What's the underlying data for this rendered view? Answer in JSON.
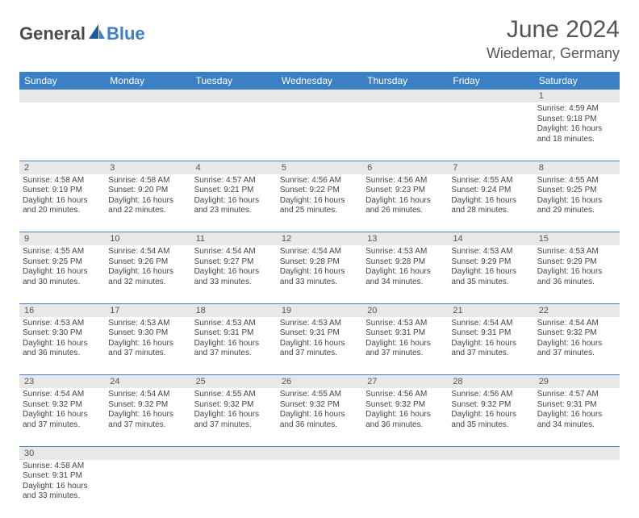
{
  "brand": {
    "part1": "General",
    "part2": "Blue"
  },
  "title": "June 2024",
  "location": "Wiedemar, Germany",
  "colors": {
    "header_bg": "#3b7fc4",
    "header_text": "#ffffff",
    "daynum_bg": "#e8e8e8",
    "text": "#444444",
    "title_color": "#555555",
    "border": "#3b7fc4"
  },
  "fonts": {
    "title_size": 30,
    "location_size": 18,
    "header_size": 12,
    "daynum_size": 11,
    "cell_size": 10
  },
  "days": [
    "Sunday",
    "Monday",
    "Tuesday",
    "Wednesday",
    "Thursday",
    "Friday",
    "Saturday"
  ],
  "weeks": [
    [
      null,
      null,
      null,
      null,
      null,
      null,
      {
        "n": "1",
        "sr": "Sunrise: 4:59 AM",
        "ss": "Sunset: 9:18 PM",
        "dl": "Daylight: 16 hours and 18 minutes."
      }
    ],
    [
      {
        "n": "2",
        "sr": "Sunrise: 4:58 AM",
        "ss": "Sunset: 9:19 PM",
        "dl": "Daylight: 16 hours and 20 minutes."
      },
      {
        "n": "3",
        "sr": "Sunrise: 4:58 AM",
        "ss": "Sunset: 9:20 PM",
        "dl": "Daylight: 16 hours and 22 minutes."
      },
      {
        "n": "4",
        "sr": "Sunrise: 4:57 AM",
        "ss": "Sunset: 9:21 PM",
        "dl": "Daylight: 16 hours and 23 minutes."
      },
      {
        "n": "5",
        "sr": "Sunrise: 4:56 AM",
        "ss": "Sunset: 9:22 PM",
        "dl": "Daylight: 16 hours and 25 minutes."
      },
      {
        "n": "6",
        "sr": "Sunrise: 4:56 AM",
        "ss": "Sunset: 9:23 PM",
        "dl": "Daylight: 16 hours and 26 minutes."
      },
      {
        "n": "7",
        "sr": "Sunrise: 4:55 AM",
        "ss": "Sunset: 9:24 PM",
        "dl": "Daylight: 16 hours and 28 minutes."
      },
      {
        "n": "8",
        "sr": "Sunrise: 4:55 AM",
        "ss": "Sunset: 9:25 PM",
        "dl": "Daylight: 16 hours and 29 minutes."
      }
    ],
    [
      {
        "n": "9",
        "sr": "Sunrise: 4:55 AM",
        "ss": "Sunset: 9:25 PM",
        "dl": "Daylight: 16 hours and 30 minutes."
      },
      {
        "n": "10",
        "sr": "Sunrise: 4:54 AM",
        "ss": "Sunset: 9:26 PM",
        "dl": "Daylight: 16 hours and 32 minutes."
      },
      {
        "n": "11",
        "sr": "Sunrise: 4:54 AM",
        "ss": "Sunset: 9:27 PM",
        "dl": "Daylight: 16 hours and 33 minutes."
      },
      {
        "n": "12",
        "sr": "Sunrise: 4:54 AM",
        "ss": "Sunset: 9:28 PM",
        "dl": "Daylight: 16 hours and 33 minutes."
      },
      {
        "n": "13",
        "sr": "Sunrise: 4:53 AM",
        "ss": "Sunset: 9:28 PM",
        "dl": "Daylight: 16 hours and 34 minutes."
      },
      {
        "n": "14",
        "sr": "Sunrise: 4:53 AM",
        "ss": "Sunset: 9:29 PM",
        "dl": "Daylight: 16 hours and 35 minutes."
      },
      {
        "n": "15",
        "sr": "Sunrise: 4:53 AM",
        "ss": "Sunset: 9:29 PM",
        "dl": "Daylight: 16 hours and 36 minutes."
      }
    ],
    [
      {
        "n": "16",
        "sr": "Sunrise: 4:53 AM",
        "ss": "Sunset: 9:30 PM",
        "dl": "Daylight: 16 hours and 36 minutes."
      },
      {
        "n": "17",
        "sr": "Sunrise: 4:53 AM",
        "ss": "Sunset: 9:30 PM",
        "dl": "Daylight: 16 hours and 37 minutes."
      },
      {
        "n": "18",
        "sr": "Sunrise: 4:53 AM",
        "ss": "Sunset: 9:31 PM",
        "dl": "Daylight: 16 hours and 37 minutes."
      },
      {
        "n": "19",
        "sr": "Sunrise: 4:53 AM",
        "ss": "Sunset: 9:31 PM",
        "dl": "Daylight: 16 hours and 37 minutes."
      },
      {
        "n": "20",
        "sr": "Sunrise: 4:53 AM",
        "ss": "Sunset: 9:31 PM",
        "dl": "Daylight: 16 hours and 37 minutes."
      },
      {
        "n": "21",
        "sr": "Sunrise: 4:54 AM",
        "ss": "Sunset: 9:31 PM",
        "dl": "Daylight: 16 hours and 37 minutes."
      },
      {
        "n": "22",
        "sr": "Sunrise: 4:54 AM",
        "ss": "Sunset: 9:32 PM",
        "dl": "Daylight: 16 hours and 37 minutes."
      }
    ],
    [
      {
        "n": "23",
        "sr": "Sunrise: 4:54 AM",
        "ss": "Sunset: 9:32 PM",
        "dl": "Daylight: 16 hours and 37 minutes."
      },
      {
        "n": "24",
        "sr": "Sunrise: 4:54 AM",
        "ss": "Sunset: 9:32 PM",
        "dl": "Daylight: 16 hours and 37 minutes."
      },
      {
        "n": "25",
        "sr": "Sunrise: 4:55 AM",
        "ss": "Sunset: 9:32 PM",
        "dl": "Daylight: 16 hours and 37 minutes."
      },
      {
        "n": "26",
        "sr": "Sunrise: 4:55 AM",
        "ss": "Sunset: 9:32 PM",
        "dl": "Daylight: 16 hours and 36 minutes."
      },
      {
        "n": "27",
        "sr": "Sunrise: 4:56 AM",
        "ss": "Sunset: 9:32 PM",
        "dl": "Daylight: 16 hours and 36 minutes."
      },
      {
        "n": "28",
        "sr": "Sunrise: 4:56 AM",
        "ss": "Sunset: 9:32 PM",
        "dl": "Daylight: 16 hours and 35 minutes."
      },
      {
        "n": "29",
        "sr": "Sunrise: 4:57 AM",
        "ss": "Sunset: 9:31 PM",
        "dl": "Daylight: 16 hours and 34 minutes."
      }
    ],
    [
      {
        "n": "30",
        "sr": "Sunrise: 4:58 AM",
        "ss": "Sunset: 9:31 PM",
        "dl": "Daylight: 16 hours and 33 minutes."
      },
      null,
      null,
      null,
      null,
      null,
      null
    ]
  ]
}
